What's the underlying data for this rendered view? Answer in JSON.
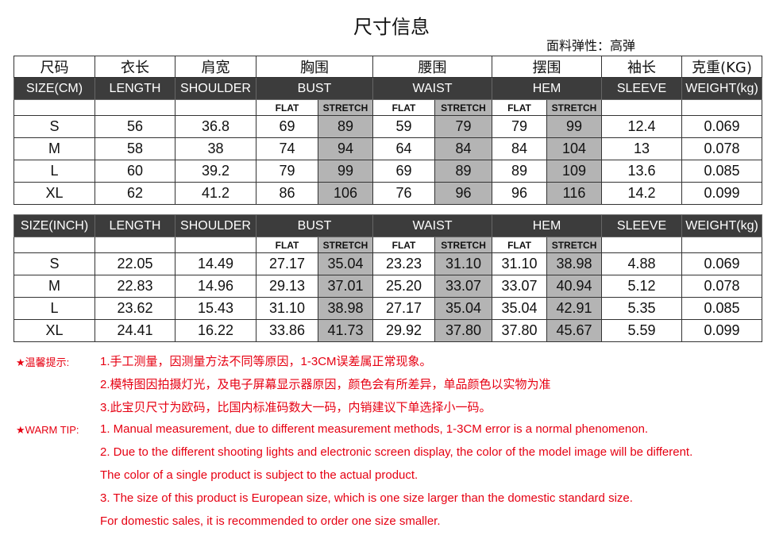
{
  "title": "尺寸信息",
  "elasticity": "面料弹性：高弹",
  "cn_headers": [
    "尺码",
    "衣长",
    "肩宽",
    "胸围",
    "腰围",
    "摆围",
    "袖长",
    "克重(KG)"
  ],
  "flat": "FLAT",
  "stretch": "STRETCH",
  "cm": {
    "headers": [
      "SIZE(CM)",
      "LENGTH",
      "SHOULDER",
      "BUST",
      "WAIST",
      "HEM",
      "SLEEVE",
      "WEIGHT(kg)"
    ],
    "rows": [
      [
        "S",
        "56",
        "36.8",
        "69",
        "89",
        "59",
        "79",
        "79",
        "99",
        "12.4",
        "0.069"
      ],
      [
        "M",
        "58",
        "38",
        "74",
        "94",
        "64",
        "84",
        "84",
        "104",
        "13",
        "0.078"
      ],
      [
        "L",
        "60",
        "39.2",
        "79",
        "99",
        "69",
        "89",
        "89",
        "109",
        "13.6",
        "0.085"
      ],
      [
        "XL",
        "62",
        "41.2",
        "86",
        "106",
        "76",
        "96",
        "96",
        "116",
        "14.2",
        "0.099"
      ]
    ]
  },
  "inch": {
    "headers": [
      "SIZE(INCH)",
      "LENGTH",
      "SHOULDER",
      "BUST",
      "WAIST",
      "HEM",
      "SLEEVE",
      "WEIGHT(kg)"
    ],
    "rows": [
      [
        "S",
        "22.05",
        "14.49",
        "27.17",
        "35.04",
        "23.23",
        "31.10",
        "31.10",
        "38.98",
        "4.88",
        "0.069"
      ],
      [
        "M",
        "22.83",
        "14.96",
        "29.13",
        "37.01",
        "25.20",
        "33.07",
        "33.07",
        "40.94",
        "5.12",
        "0.078"
      ],
      [
        "L",
        "23.62",
        "15.43",
        "31.10",
        "38.98",
        "27.17",
        "35.04",
        "35.04",
        "42.91",
        "5.35",
        "0.085"
      ],
      [
        "XL",
        "24.41",
        "16.22",
        "33.86",
        "41.73",
        "29.92",
        "37.80",
        "37.80",
        "45.67",
        "5.59",
        "0.099"
      ]
    ]
  },
  "notes": {
    "cn_label": "★温馨提示:",
    "cn": [
      "1.手工测量，因测量方法不同等原因，1-3CM误差属正常现象。",
      "2.模特图因拍摄灯光，及电子屏幕显示器原因，颜色会有所差异，单品颜色以实物为准",
      "3.此宝贝尺寸为欧码，比国内标准码数大一码，内销建议下单选择小一码。"
    ],
    "en_label": "★WARM TIP:",
    "en": [
      "1. Manual measurement, due to different measurement methods, 1-3CM error is a normal phenomenon.",
      "2. Due to the different shooting lights and electronic screen display, the  color of the model image will be different.",
      "The color of a single product is subject to the actual product.",
      "3. The size of this product is European size, which is one size larger than the domestic standard size.",
      "For domestic sales, it is recommended to order one size smaller."
    ]
  },
  "colors": {
    "header_bg": "#3c3c3c",
    "stretch_bg": "#b4b4b4",
    "note_red": "#e60012"
  }
}
